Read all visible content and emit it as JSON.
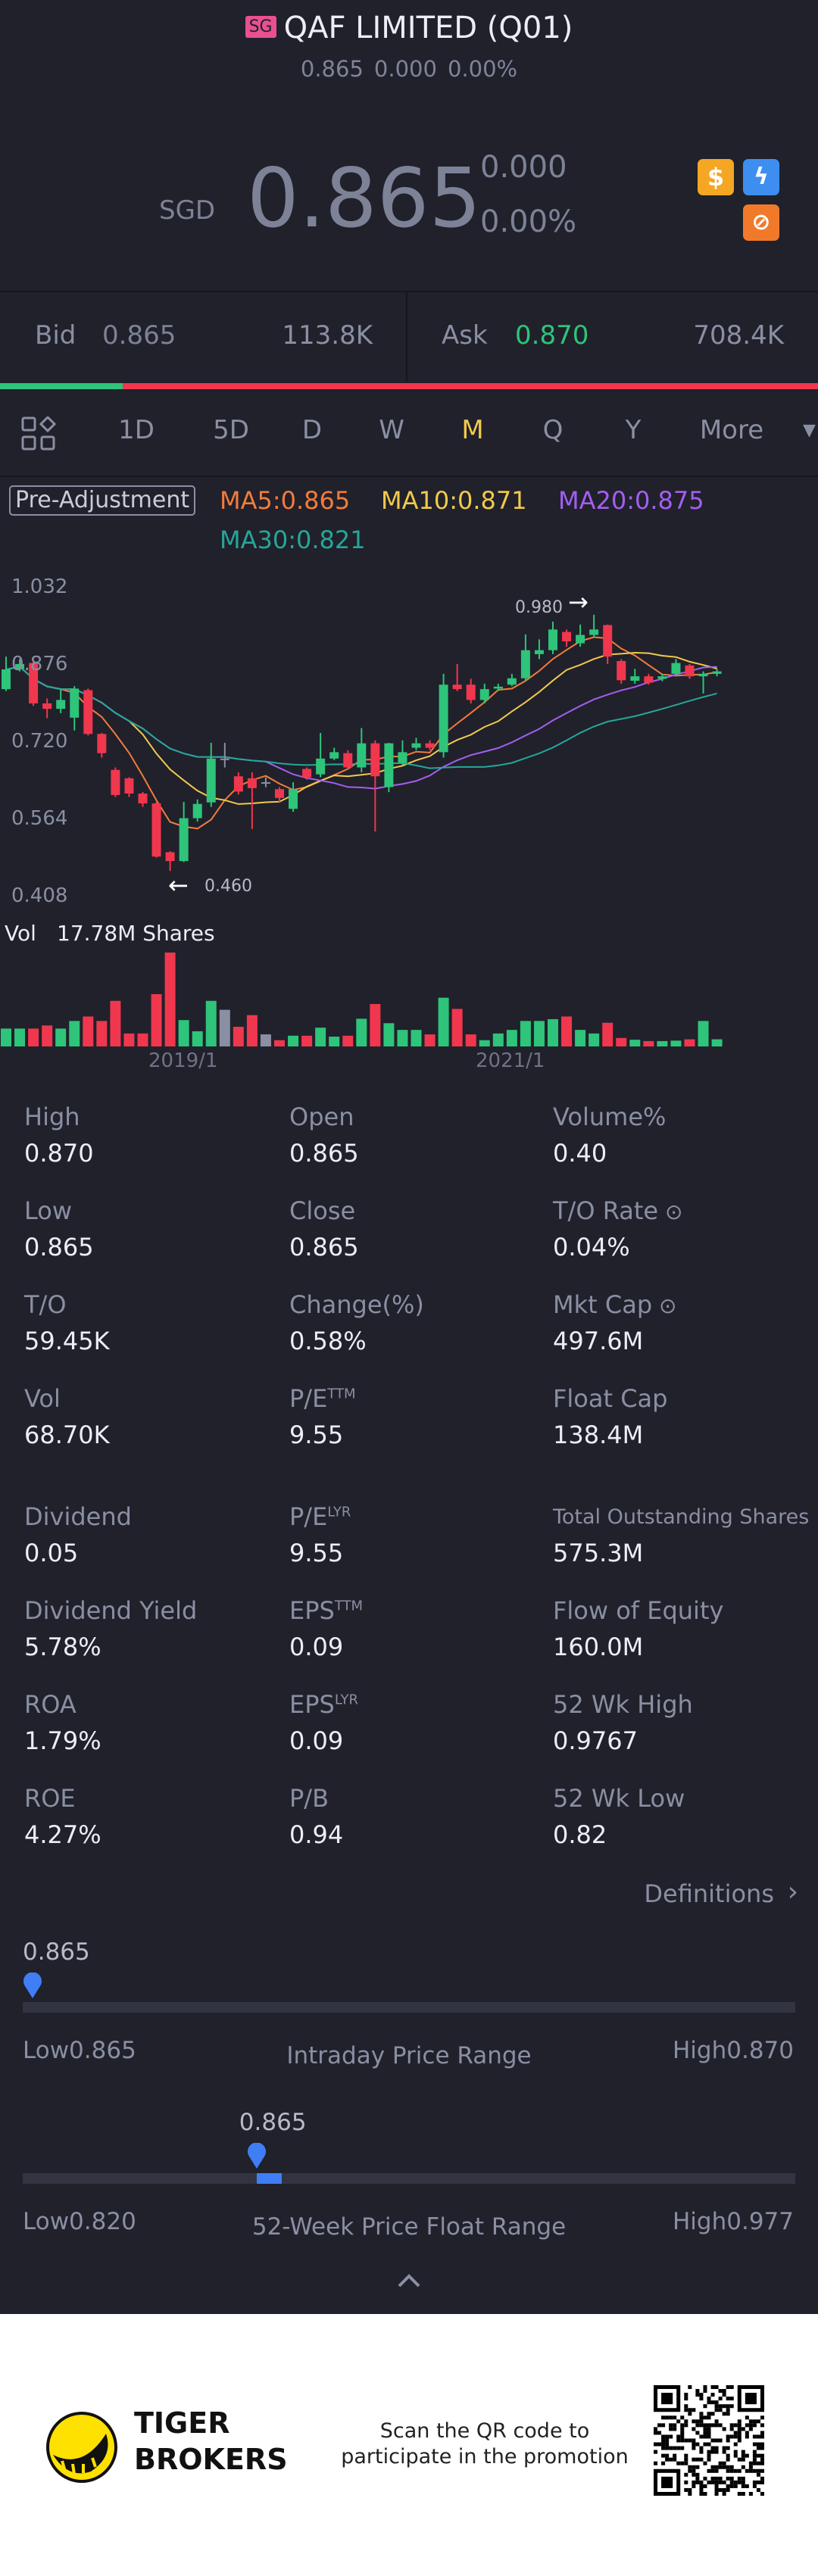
{
  "header": {
    "market_badge": "SG",
    "title": "QAF LIMITED (Q01)",
    "sub_price": "0.865",
    "sub_change": "0.000",
    "sub_change_pct": "0.00%",
    "currency": "SGD",
    "price": "0.865",
    "change": "0.000",
    "change_pct": "0.00%"
  },
  "bidask": {
    "bid_label": "Bid",
    "bid_price": "0.865",
    "bid_size": "113.8K",
    "ask_label": "Ask",
    "ask_price": "0.870",
    "ask_size": "708.4K",
    "bid_ratio": 0.15
  },
  "tabs": [
    "1D",
    "5D",
    "D",
    "W",
    "M",
    "Q",
    "Y",
    "More"
  ],
  "active_tab": "M",
  "chart": {
    "adjust_label": "Pre-Adjustment",
    "ma5": "MA5:0.865",
    "ma10": "MA10:0.871",
    "ma20": "MA20:0.875",
    "ma30": "MA30:0.821",
    "y_labels": [
      "1.032",
      "0.876",
      "0.720",
      "0.564",
      "0.408"
    ],
    "y_range": [
      0.408,
      1.032
    ],
    "high_marker": "0.980",
    "low_marker": "0.460",
    "vol_label": "Vol",
    "vol_value": "17.78M Shares",
    "x_labels": [
      "2019/1",
      "2021/1"
    ],
    "colors": {
      "up": "#2ec47a",
      "down": "#f0374e",
      "flat": "#8a8fa3",
      "ma5": "#f47b3b",
      "ma10": "#f2c94c",
      "ma20": "#a45ef0",
      "ma30": "#26a69a"
    },
    "candles": [
      [
        0.829,
        0.895,
        0.825,
        0.869
      ],
      [
        0.87,
        0.89,
        0.865,
        0.88
      ],
      [
        0.882,
        0.885,
        0.795,
        0.8
      ],
      [
        0.8,
        0.81,
        0.77,
        0.789
      ],
      [
        0.789,
        0.83,
        0.78,
        0.807
      ],
      [
        0.771,
        0.835,
        0.745,
        0.83
      ],
      [
        0.827,
        0.83,
        0.735,
        0.738
      ],
      [
        0.738,
        0.74,
        0.69,
        0.699
      ],
      [
        0.665,
        0.67,
        0.61,
        0.614
      ],
      [
        0.648,
        0.65,
        0.61,
        0.617
      ],
      [
        0.617,
        0.62,
        0.59,
        0.597
      ],
      [
        0.597,
        0.6,
        0.487,
        0.489
      ],
      [
        0.498,
        0.5,
        0.46,
        0.48
      ],
      [
        0.48,
        0.6,
        0.478,
        0.567
      ],
      [
        0.567,
        0.605,
        0.56,
        0.596
      ],
      [
        0.599,
        0.72,
        0.59,
        0.688
      ],
      [
        0.688,
        0.72,
        0.67,
        0.688
      ],
      [
        0.652,
        0.66,
        0.615,
        0.621
      ],
      [
        0.648,
        0.66,
        0.545,
        0.628
      ],
      [
        0.64,
        0.65,
        0.63,
        0.64
      ],
      [
        0.626,
        0.63,
        0.6,
        0.608
      ],
      [
        0.586,
        0.64,
        0.58,
        0.626
      ],
      [
        0.667,
        0.67,
        0.645,
        0.65
      ],
      [
        0.656,
        0.74,
        0.65,
        0.688
      ],
      [
        0.688,
        0.71,
        0.685,
        0.701
      ],
      [
        0.699,
        0.705,
        0.665,
        0.67
      ],
      [
        0.67,
        0.75,
        0.66,
        0.719
      ],
      [
        0.719,
        0.725,
        0.54,
        0.652
      ],
      [
        0.63,
        0.72,
        0.62,
        0.719
      ],
      [
        0.679,
        0.725,
        0.675,
        0.701
      ],
      [
        0.71,
        0.73,
        0.705,
        0.719
      ],
      [
        0.719,
        0.725,
        0.705,
        0.71
      ],
      [
        0.701,
        0.86,
        0.69,
        0.838
      ],
      [
        0.838,
        0.88,
        0.825,
        0.829
      ],
      [
        0.838,
        0.85,
        0.8,
        0.807
      ],
      [
        0.807,
        0.84,
        0.8,
        0.829
      ],
      [
        0.83,
        0.84,
        0.825,
        0.834
      ],
      [
        0.838,
        0.86,
        0.835,
        0.851
      ],
      [
        0.851,
        0.94,
        0.845,
        0.908
      ],
      [
        0.9,
        0.93,
        0.89,
        0.908
      ],
      [
        0.908,
        0.966,
        0.9,
        0.95
      ],
      [
        0.945,
        0.95,
        0.915,
        0.926
      ],
      [
        0.922,
        0.96,
        0.915,
        0.939
      ],
      [
        0.939,
        0.98,
        0.935,
        0.95
      ],
      [
        0.959,
        0.96,
        0.88,
        0.895
      ],
      [
        0.886,
        0.89,
        0.84,
        0.847
      ],
      [
        0.846,
        0.87,
        0.84,
        0.855
      ],
      [
        0.855,
        0.86,
        0.838,
        0.842
      ],
      [
        0.85,
        0.86,
        0.845,
        0.855
      ],
      [
        0.86,
        0.89,
        0.855,
        0.882
      ],
      [
        0.877,
        0.88,
        0.85,
        0.855
      ],
      [
        0.855,
        0.865,
        0.82,
        0.86
      ],
      [
        0.86,
        0.87,
        0.855,
        0.865
      ]
    ],
    "flat_indices": [
      16,
      19
    ],
    "volume_rel": [
      40,
      40,
      40,
      47,
      40,
      57,
      67,
      57,
      102,
      29,
      29,
      117,
      210,
      59,
      34,
      102,
      82,
      44,
      70,
      27,
      14,
      24,
      24,
      42,
      22,
      24,
      62,
      95,
      52,
      37,
      37,
      27,
      109,
      84,
      27,
      14,
      29,
      37,
      57,
      57,
      61,
      67,
      37,
      29,
      53,
      19,
      15,
      12,
      12,
      13,
      16,
      57,
      16
    ]
  },
  "stats": [
    {
      "label": "High",
      "value": "0.870"
    },
    {
      "label": "Open",
      "value": "0.865"
    },
    {
      "label": "Volume%",
      "value": "0.40"
    },
    {
      "label": "Low",
      "value": "0.865"
    },
    {
      "label": "Close",
      "value": "0.865"
    },
    {
      "label": "T/O Rate",
      "value": "0.04%",
      "info": true
    },
    {
      "label": "T/O",
      "value": "59.45K"
    },
    {
      "label": "Change(%)",
      "value": "0.58%"
    },
    {
      "label": "Mkt Cap",
      "value": "497.6M",
      "info": true
    },
    {
      "label": "Vol",
      "value": "68.70K"
    },
    {
      "label": "P/E",
      "sup": "TTM",
      "value": "9.55"
    },
    {
      "label": "Float Cap",
      "value": "138.4M"
    },
    {
      "label": "Dividend",
      "value": "0.05"
    },
    {
      "label": "P/E",
      "sup": "LYR",
      "value": "9.55"
    },
    {
      "label": "Total Outstanding Shares",
      "value": "575.3M",
      "small": true
    },
    {
      "label": "Dividend Yield",
      "value": "5.78%"
    },
    {
      "label": "EPS",
      "sup": "TTM",
      "value": "0.09"
    },
    {
      "label": "Flow of Equity",
      "value": "160.0M"
    },
    {
      "label": "ROA",
      "value": "1.79%"
    },
    {
      "label": "EPS",
      "sup": "LYR",
      "value": "0.09"
    },
    {
      "label": "52 Wk High",
      "value": "0.9767"
    },
    {
      "label": "ROE",
      "value": "4.27%"
    },
    {
      "label": "P/B",
      "value": "0.94"
    },
    {
      "label": "52 Wk Low",
      "value": "0.82"
    }
  ],
  "definitions_label": "Definitions",
  "intraday": {
    "current": "0.865",
    "low": "Low0.865",
    "high": "High0.870",
    "title": "Intraday Price Range",
    "position": 0.0
  },
  "week52": {
    "current": "0.865",
    "low": "Low0.820",
    "high": "High0.977",
    "title": "52-Week Price Float Range",
    "position": 0.29
  },
  "footer": {
    "brand_line1": "TIGER",
    "brand_line2": "BROKERS",
    "promo_line1": "Scan the QR code to",
    "promo_line2": "participate in the promotion"
  }
}
